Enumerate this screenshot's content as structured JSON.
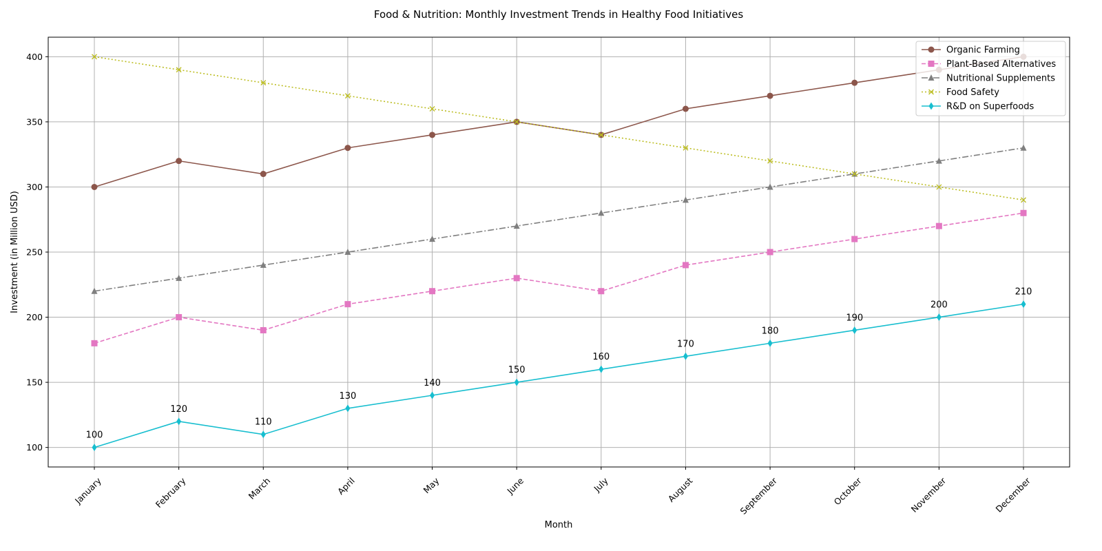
{
  "chart_data": {
    "type": "line",
    "title": "Food & Nutrition: Monthly Investment Trends in Healthy Food Initiatives",
    "xlabel": "Month",
    "ylabel": "Investment (in Million USD)",
    "categories": [
      "January",
      "February",
      "March",
      "April",
      "May",
      "June",
      "July",
      "August",
      "September",
      "October",
      "November",
      "December"
    ],
    "ylim": [
      85,
      415
    ],
    "yticks": [
      100,
      150,
      200,
      250,
      300,
      350,
      400
    ],
    "grid": true,
    "legend_position": "top-right",
    "series": [
      {
        "name": "Organic Farming",
        "color": "#8c564b",
        "marker": "circle",
        "dash": "solid",
        "values": [
          300,
          320,
          310,
          330,
          340,
          350,
          340,
          360,
          370,
          380,
          390,
          400
        ]
      },
      {
        "name": "Plant-Based Alternatives",
        "color": "#e377c2",
        "marker": "square",
        "dash": "dashed",
        "values": [
          180,
          200,
          190,
          210,
          220,
          230,
          220,
          240,
          250,
          260,
          270,
          280
        ]
      },
      {
        "name": "Nutritional Supplements",
        "color": "#7f7f7f",
        "marker": "triangle",
        "dash": "dashdot",
        "values": [
          220,
          230,
          240,
          250,
          260,
          270,
          280,
          290,
          300,
          310,
          320,
          330
        ]
      },
      {
        "name": "Food Safety",
        "color": "#bcbd22",
        "marker": "x",
        "dash": "dotted",
        "values": [
          400,
          390,
          380,
          370,
          360,
          350,
          340,
          330,
          320,
          310,
          300,
          290
        ]
      },
      {
        "name": "R&D on Superfoods",
        "color": "#17becf",
        "marker": "diamond",
        "dash": "solid",
        "values": [
          100,
          120,
          110,
          130,
          140,
          150,
          160,
          170,
          180,
          190,
          200,
          210
        ],
        "data_labels": true
      }
    ]
  }
}
